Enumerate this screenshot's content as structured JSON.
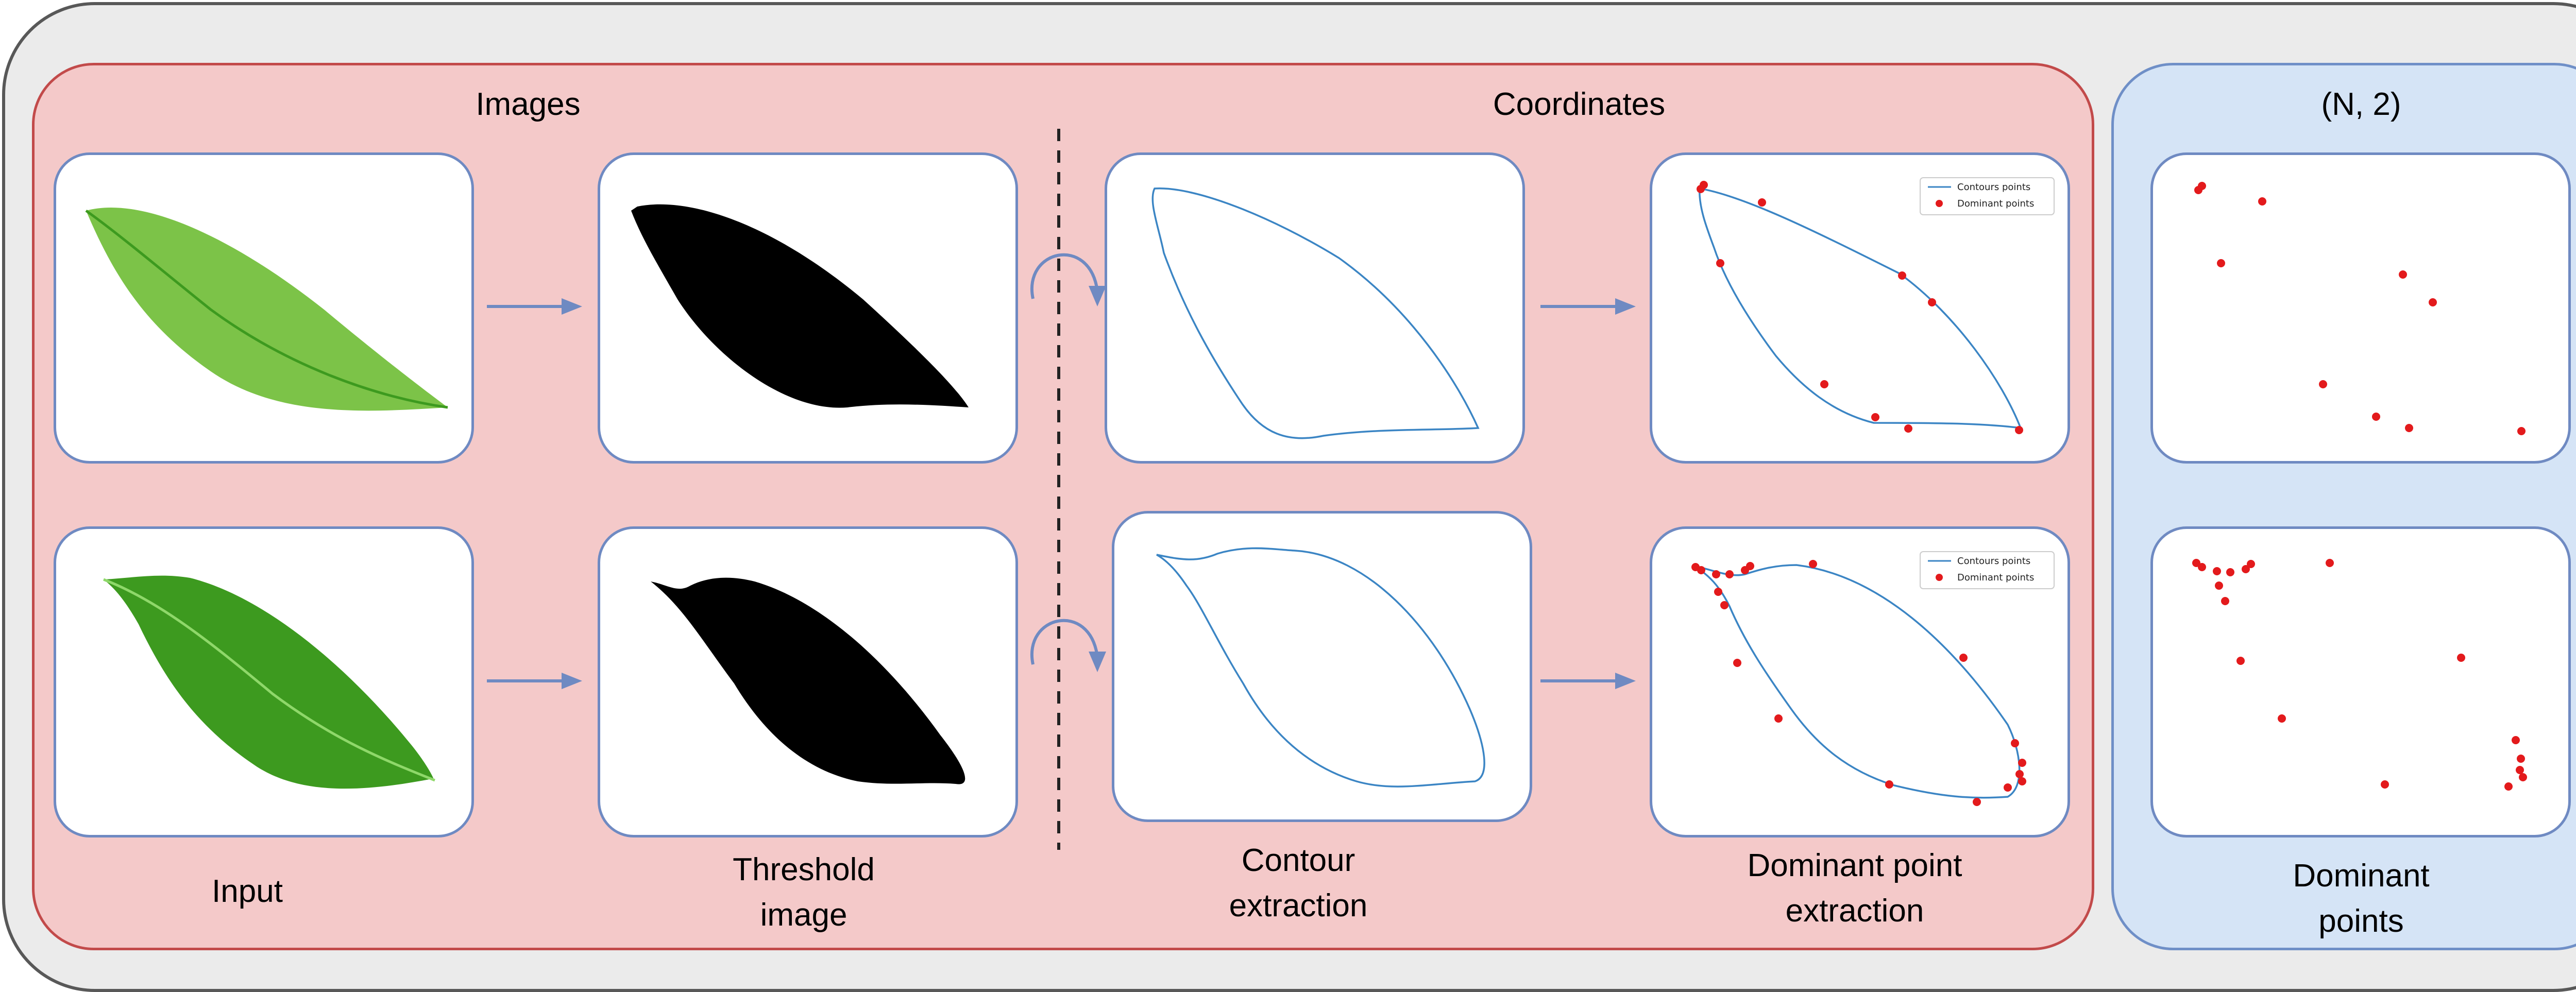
{
  "sections": {
    "images_label": "Images",
    "coordinates_label": "Coordinates",
    "output_shape_label": "(N, 2)"
  },
  "steps": {
    "input": "Input",
    "threshold_line1": "Threshold",
    "threshold_line2": "image",
    "contour_line1": "Contour",
    "contour_line2": "extraction",
    "dominant_line1": "Dominant point",
    "dominant_line2": "extraction",
    "output_line1": "Dominant",
    "output_line2": "points"
  },
  "legend": {
    "contours": "Contours points",
    "dominant": "Dominant points"
  },
  "colors": {
    "leaf_light": "#7cc348",
    "leaf_dark": "#3d9a1f",
    "threshold": "#000000",
    "contour_line": "#3b85c4",
    "dominant_point": "#e31a1c",
    "arrow": "#6f8ac2",
    "images_region": "#f4c9c9",
    "output_region": "#d5e4f6"
  }
}
